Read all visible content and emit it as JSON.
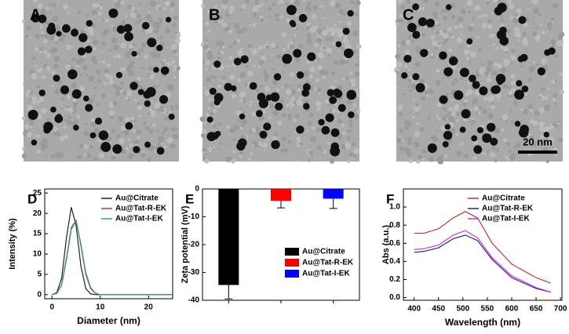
{
  "panels": [
    {
      "label": "A"
    },
    {
      "label": "B"
    },
    {
      "label": "C"
    }
  ],
  "scale_bar": "20 nm",
  "chart_data": [
    {
      "type": "line",
      "panel_label": "D",
      "xlabel": "Diameter (nm)",
      "ylabel": "Intensity (%)",
      "x": [
        0,
        1,
        2,
        3,
        4,
        5,
        6,
        7,
        8,
        9,
        10,
        12,
        15,
        20,
        25
      ],
      "series": [
        {
          "name": "Au@Citrate",
          "color": "#222222",
          "values": [
            0,
            0.5,
            4,
            14,
            21.5,
            17,
            7,
            1.5,
            0.2,
            0,
            0,
            0,
            0,
            0,
            0
          ]
        },
        {
          "name": "Au@Tat-R-EK",
          "color": "#c0392b",
          "values": [
            0,
            0.3,
            2.5,
            9,
            16.5,
            18.3,
            12,
            5,
            1.5,
            0.3,
            0,
            0,
            0,
            0,
            0
          ]
        },
        {
          "name": "Au@Tat-I-EK",
          "color": "#2a9d9d",
          "values": [
            0,
            0.3,
            2.3,
            8.5,
            16,
            18.2,
            12.5,
            5.5,
            1.8,
            0.4,
            0,
            0,
            0,
            0,
            0
          ]
        }
      ],
      "xlim": [
        -1.5,
        25
      ],
      "xticks": [
        0,
        10,
        20
      ],
      "ylim": [
        -1,
        26
      ],
      "yticks": [
        0,
        5,
        10,
        15,
        20,
        25
      ]
    },
    {
      "type": "bar",
      "panel_label": "E",
      "ylabel": "Zeta potential (mV)",
      "series": [
        {
          "name": "Au@Citrate",
          "color": "#000000",
          "values": [
            -34.5
          ],
          "errors": [
            5
          ]
        },
        {
          "name": "Au@Tat-R-EK",
          "color": "#ff0000",
          "values": [
            -4.3
          ],
          "errors": [
            2.5
          ]
        },
        {
          "name": "Au@Tat-I-EK",
          "color": "#0000ff",
          "values": [
            -3.5
          ],
          "errors": [
            3.5
          ]
        }
      ],
      "ylim": [
        -40,
        0
      ],
      "yticks": [
        -40,
        -30,
        -20,
        -10,
        0
      ]
    },
    {
      "type": "line",
      "panel_label": "F",
      "xlabel": "Wavelength (nm)",
      "ylabel": "Abs (a.u.)",
      "x": [
        400,
        420,
        450,
        480,
        505,
        530,
        560,
        600,
        650,
        680
      ],
      "series": [
        {
          "name": "Au@Citrate",
          "color": "#c0392b",
          "values": [
            0.71,
            0.71,
            0.76,
            0.88,
            0.95,
            0.88,
            0.6,
            0.37,
            0.22,
            0.16
          ]
        },
        {
          "name": "Au@Tat-R-EK",
          "color": "#1f2a8a",
          "values": [
            0.5,
            0.51,
            0.55,
            0.65,
            0.69,
            0.63,
            0.42,
            0.22,
            0.1,
            0.06
          ]
        },
        {
          "name": "Au@Tat-I-EK",
          "color": "#d633d6",
          "values": [
            0.53,
            0.54,
            0.58,
            0.69,
            0.74,
            0.66,
            0.44,
            0.24,
            0.11,
            0.06
          ]
        }
      ],
      "xlim": [
        378,
        703
      ],
      "xticks": [
        400,
        450,
        500,
        550,
        600,
        650,
        700
      ],
      "ylim": [
        -0.03,
        1.2
      ],
      "yticks": [
        {
          "value": 0,
          "label": "0.0"
        },
        0.2,
        0.4,
        0.6,
        0.8,
        {
          "value": 1,
          "label": "1.0"
        }
      ]
    }
  ]
}
